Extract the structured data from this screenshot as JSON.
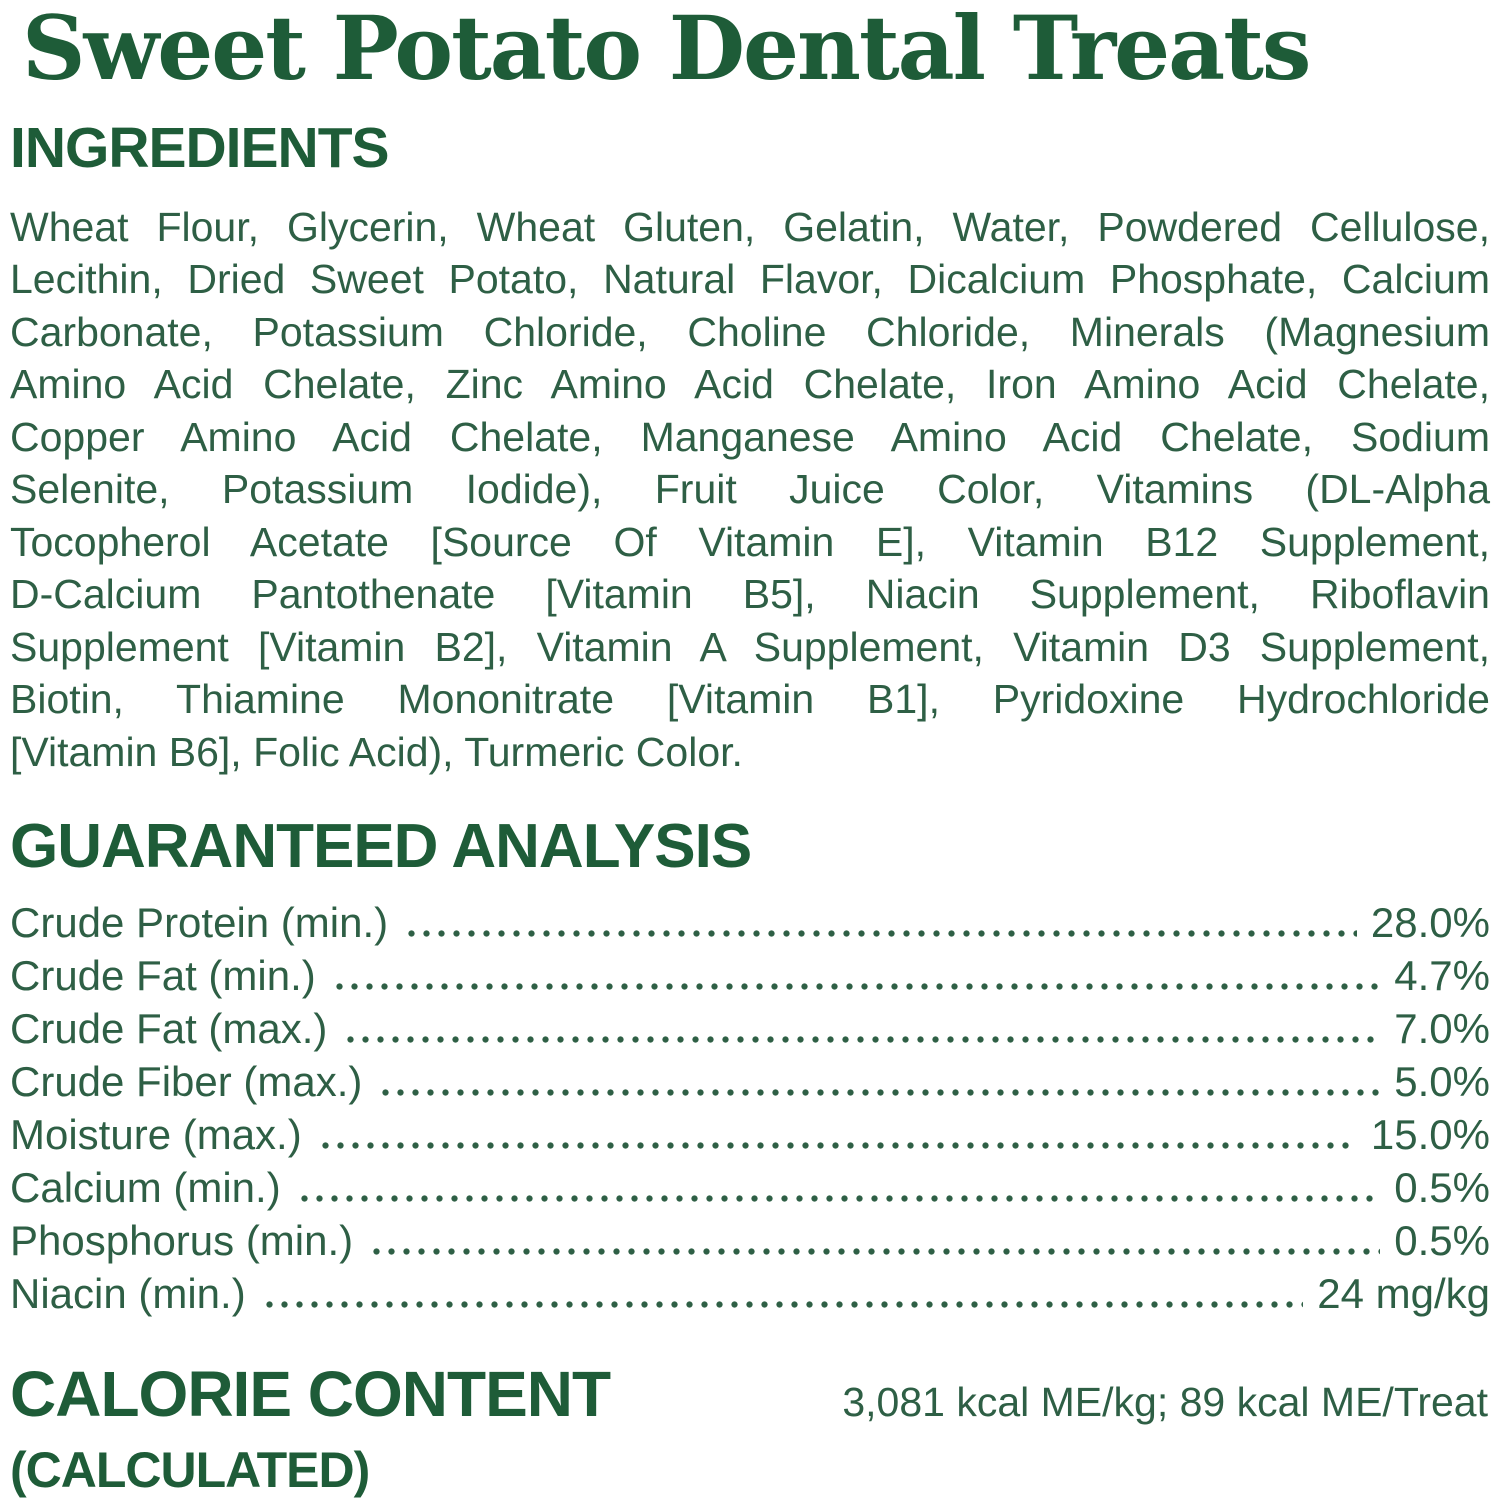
{
  "title": "Sweet Potato Dental Treats",
  "colors": {
    "heading_green": "#1e5c38",
    "body_green": "#2e5f45"
  },
  "ingredients": {
    "heading": "INGREDIENTS",
    "lines": [
      "Wheat Flour, Glycerin, Wheat Gluten, Gelatin, Water, Powdered Cellulose,",
      "Lecithin, Dried Sweet Potato, Natural Flavor, Dicalcium Phosphate, Calcium",
      "Carbonate, Potassium Chloride, Choline Chloride, Minerals (Magnesium",
      "Amino Acid Chelate, Zinc Amino Acid Chelate, Iron Amino Acid Chelate,",
      "Copper Amino Acid Chelate, Manganese Amino Acid Chelate, Sodium",
      "Selenite, Potassium Iodide), Fruit Juice Color, Vitamins (DL-Alpha",
      "Tocopherol Acetate [Source Of Vitamin E], Vitamin B12 Supplement,",
      "D-Calcium Pantothenate [Vitamin B5], Niacin Supplement, Riboflavin",
      "Supplement [Vitamin B2], Vitamin A Supplement, Vitamin D3 Supplement,",
      "Biotin, Thiamine Mononitrate [Vitamin B1], Pyridoxine Hydrochloride",
      "[Vitamin B6], Folic Acid), Turmeric Color."
    ]
  },
  "analysis": {
    "heading": "GUARANTEED ANALYSIS",
    "rows": [
      {
        "label": "Crude Protein (min.)",
        "value": "28.0%"
      },
      {
        "label": "Crude Fat (min.)",
        "value": "4.7%"
      },
      {
        "label": "Crude Fat (max.)",
        "value": "7.0%"
      },
      {
        "label": "Crude Fiber (max.)",
        "value": "5.0%"
      },
      {
        "label": "Moisture (max.)",
        "value": "15.0%"
      },
      {
        "label": "Calcium (min.)",
        "value": "0.5%"
      },
      {
        "label": "Phosphorus (min.)",
        "value": "0.5%"
      },
      {
        "label": "Niacin (min.)",
        "value": "24 mg/kg"
      }
    ]
  },
  "calories": {
    "heading": "CALORIE CONTENT",
    "subheading": "(CALCULATED)",
    "value": "3,081 kcal ME/kg; 89 kcal ME/Treat"
  }
}
